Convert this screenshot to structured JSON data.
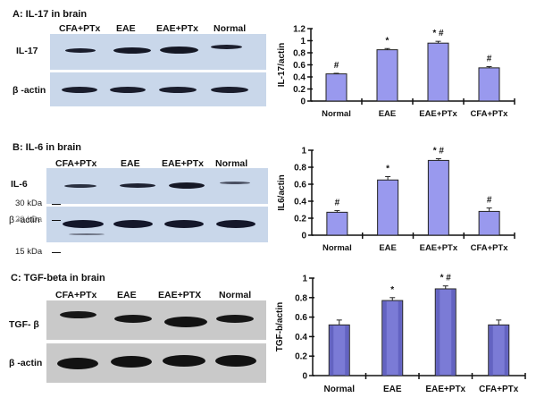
{
  "panels": [
    {
      "id": "A",
      "title": "A: IL-17 in brain",
      "lanes": [
        "CFA+PTx",
        "EAE",
        "EAE+PTx",
        "Normal"
      ],
      "blot_rows": [
        "IL-17",
        "β -actin"
      ],
      "markers": []
    },
    {
      "id": "B",
      "title": "B: IL-6 in brain",
      "lanes": [
        "CFA+PTx",
        "EAE",
        "EAE+PTx",
        "Normal"
      ],
      "blot_rows": [
        "IL-6",
        "β -actin"
      ],
      "markers": [
        "30 kDa",
        "20 kDa",
        "15 kDa"
      ]
    },
    {
      "id": "C",
      "title": "C: TGF-beta in brain",
      "lanes": [
        "CFA+PTx",
        "EAE",
        "EAE+PTX",
        "Normal"
      ],
      "blot_rows": [
        "TGF- β",
        "β -actin"
      ],
      "markers": []
    }
  ],
  "colors": {
    "bar_fill_ab": "#9999ee",
    "bar_fill_c": "#7b7bd6",
    "blot_blue": "#c9d7ea",
    "blot_gray": "#c9c9c9",
    "band": "#1a1a2a"
  },
  "chart_data": [
    {
      "type": "bar",
      "title": "",
      "categories": [
        "Normal",
        "EAE",
        "EAE+PTx",
        "CFA+PTx"
      ],
      "values": [
        0.45,
        0.85,
        0.96,
        0.55
      ],
      "errors": [
        0.01,
        0.02,
        0.03,
        0.02
      ],
      "annotations": [
        "#",
        "*",
        "* #",
        "#"
      ],
      "xlabel": "",
      "ylabel": "IL-17/actin",
      "ylim": [
        0,
        1.2
      ],
      "yticks": [
        "0",
        "0.2",
        "0.4",
        "0.6",
        "0.8",
        "1",
        "1.2"
      ],
      "grid": false
    },
    {
      "type": "bar",
      "title": "",
      "categories": [
        "Normal",
        "EAE",
        "EAE+PTx",
        "CFA+PTx"
      ],
      "values": [
        0.27,
        0.65,
        0.88,
        0.28
      ],
      "errors": [
        0.02,
        0.04,
        0.02,
        0.04
      ],
      "annotations": [
        "#",
        "*",
        "* #",
        "#"
      ],
      "xlabel": "",
      "ylabel": "IL6/actin",
      "ylim": [
        0,
        1
      ],
      "yticks": [
        "0",
        "0.2",
        "0.4",
        "0.6",
        "0.8",
        "1"
      ],
      "grid": false
    },
    {
      "type": "bar",
      "title": "",
      "categories": [
        "Normal",
        "EAE",
        "EAE+PTx",
        "CFA+PTx"
      ],
      "values": [
        0.52,
        0.77,
        0.89,
        0.52
      ],
      "errors": [
        0.05,
        0.03,
        0.03,
        0.05
      ],
      "annotations": [
        "",
        "*",
        "* #",
        ""
      ],
      "xlabel": "",
      "ylabel": "TGF-b/actin",
      "ylim": [
        0,
        1
      ],
      "yticks": [
        "0",
        "0.2",
        "0.4",
        "0.6",
        "0.8",
        "1"
      ],
      "grid": false
    }
  ]
}
